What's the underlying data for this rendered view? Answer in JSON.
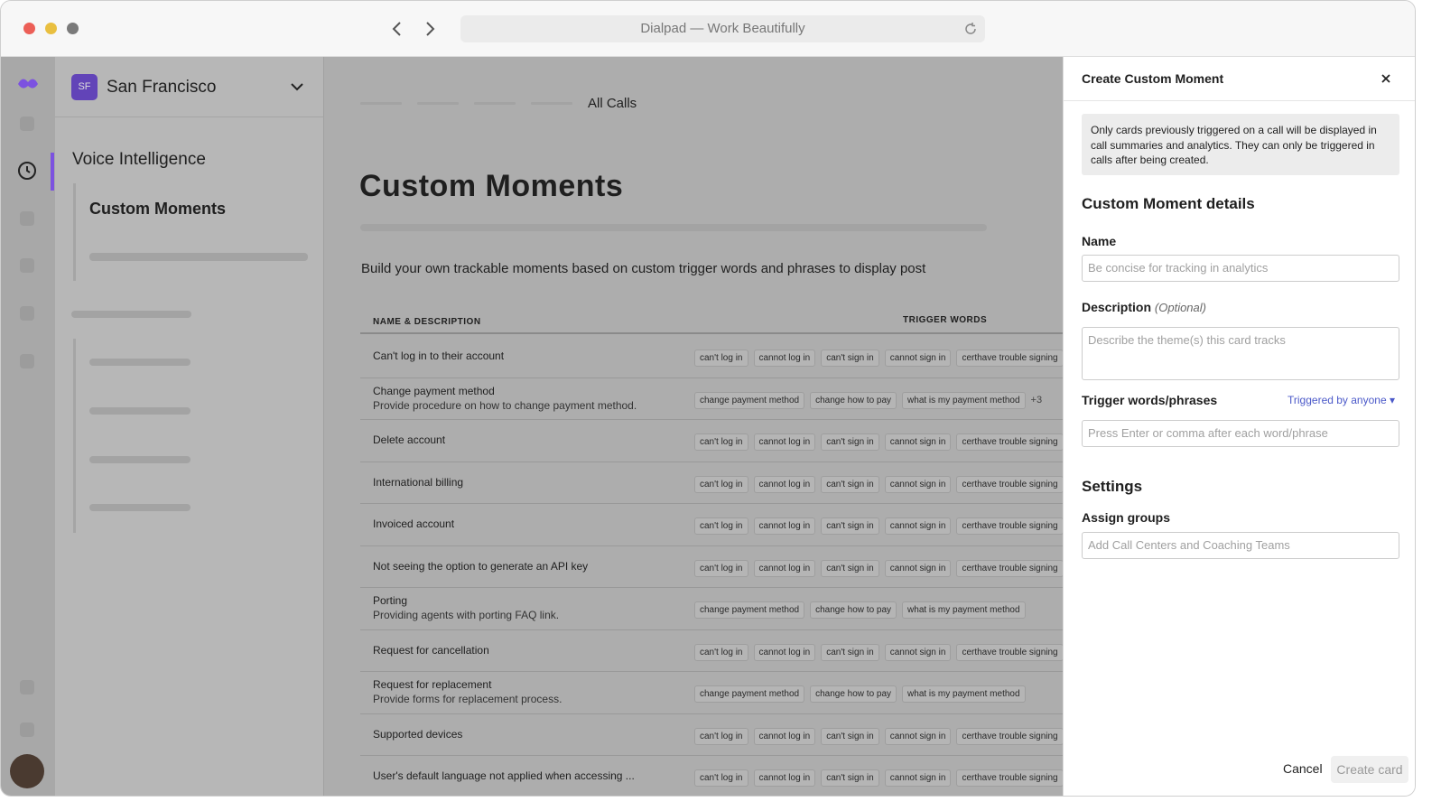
{
  "browser": {
    "title": "Dialpad — Work Beautifully"
  },
  "sidebar": {
    "avatar": "SF",
    "location": "San Francisco",
    "section": "Voice Intelligence",
    "item": "Custom Moments"
  },
  "main": {
    "breadcrumb": "All Calls",
    "title": "Custom Moments",
    "description": "Build your own trackable moments based on custom trigger words and phrases to display post",
    "table": {
      "headers": [
        "NAME & DESCRIPTION",
        "TRIGGER WORDS"
      ],
      "rows": [
        {
          "name": "Can't log in to their account",
          "triggers": [
            "can't log in",
            "cannot log in",
            "can't sign in",
            "cannot sign in",
            "certhave trouble signing"
          ]
        },
        {
          "name": "Change payment method",
          "description": "Provide procedure on how to change payment method.",
          "triggers": [
            "change payment method",
            "change how to pay",
            "what is my payment method"
          ],
          "more": "+3"
        },
        {
          "name": "Delete account",
          "triggers": [
            "can't log in",
            "cannot log in",
            "can't sign in",
            "cannot sign in",
            "certhave trouble signing"
          ]
        },
        {
          "name": "International billing",
          "triggers": [
            "can't log in",
            "cannot log in",
            "can't sign in",
            "cannot sign in",
            "certhave trouble signing"
          ]
        },
        {
          "name": "Invoiced account",
          "triggers": [
            "can't log in",
            "cannot log in",
            "can't sign in",
            "cannot sign in",
            "certhave trouble signing"
          ]
        },
        {
          "name": "Not seeing the option to generate an API key",
          "triggers": [
            "can't log in",
            "cannot log in",
            "can't sign in",
            "cannot sign in",
            "certhave trouble signing"
          ]
        },
        {
          "name": "Porting",
          "description": "Providing agents with porting FAQ link.",
          "triggers": [
            "change payment method",
            "change how to pay",
            "what is my payment method"
          ]
        },
        {
          "name": "Request for cancellation",
          "triggers": [
            "can't log in",
            "cannot log in",
            "can't sign in",
            "cannot sign in",
            "certhave trouble signing"
          ]
        },
        {
          "name": "Request for replacement",
          "description": "Provide forms for replacement process.",
          "triggers": [
            "change payment method",
            "change how to pay",
            "what is my payment method"
          ]
        },
        {
          "name": "Supported devices",
          "triggers": [
            "can't log in",
            "cannot log in",
            "can't sign in",
            "cannot sign in",
            "certhave trouble signing"
          ]
        },
        {
          "name": "User's default language not applied when accessing ...",
          "triggers": [
            "can't log in",
            "cannot log in",
            "can't sign in",
            "cannot sign in",
            "certhave trouble signing"
          ]
        }
      ]
    }
  },
  "panel": {
    "title": "Create Custom Moment",
    "notice": "Only cards previously triggered on a call will be displayed in call summaries and analytics. They can only be triggered in calls after being created.",
    "details_heading": "Custom Moment details",
    "name_label": "Name",
    "name_placeholder": "Be concise for tracking in analytics",
    "description_label": "Description",
    "description_optional": "(Optional)",
    "description_placeholder": "Describe the theme(s) this card tracks",
    "trigger_label": "Trigger words/phrases",
    "trigger_mode": "Triggered by anyone",
    "trigger_placeholder": "Press Enter or comma after each word/phrase",
    "settings_heading": "Settings",
    "groups_label": "Assign groups",
    "groups_placeholder": "Add Call Centers and Coaching Teams",
    "cancel": "Cancel",
    "create": "Create card"
  }
}
